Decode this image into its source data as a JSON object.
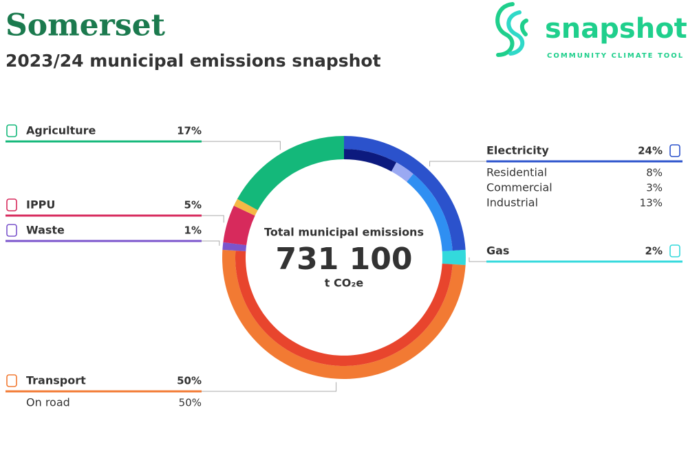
{
  "chart_data": {
    "type": "donut",
    "title": "Somerset",
    "subtitle": "2023/24 municipal emissions snapshot",
    "center_label": "Total municipal emissions",
    "total": {
      "value": 731100,
      "label": "731 100"
    },
    "unit": "t CO₂e",
    "categories": [
      "Electricity",
      "Gas",
      "Transport",
      "Waste",
      "IPPU",
      null,
      "Agriculture"
    ],
    "values": [
      24,
      2,
      50,
      1,
      5,
      1,
      17
    ],
    "value_labels": [
      "24%",
      "2%",
      "50%",
      "1%",
      "5%",
      null,
      "17%"
    ],
    "colors": [
      "#2b52cc",
      "#33d9dc",
      "#f27a33",
      "#7b55cc",
      "#d72a5c",
      "#f5b845",
      "#14b87a"
    ],
    "subcategories": [
      {
        "parent": 0,
        "categories": [
          "Residential",
          "Commercial",
          "Industrial"
        ],
        "values": [
          8,
          3,
          13
        ],
        "value_labels": [
          "8%",
          "3%",
          "13%"
        ],
        "colors": [
          "#0c1a7e",
          "#9aa9f2",
          "#2f8ff2"
        ]
      },
      {
        "parent": 2,
        "categories": [
          "On road"
        ],
        "values": [
          50
        ],
        "value_labels": [
          "50%"
        ],
        "colors": [
          "#e8452d"
        ]
      }
    ]
  },
  "logo": {
    "name": "snapshot",
    "tagline": "COMMUNITY CLIMATE TOOL"
  }
}
